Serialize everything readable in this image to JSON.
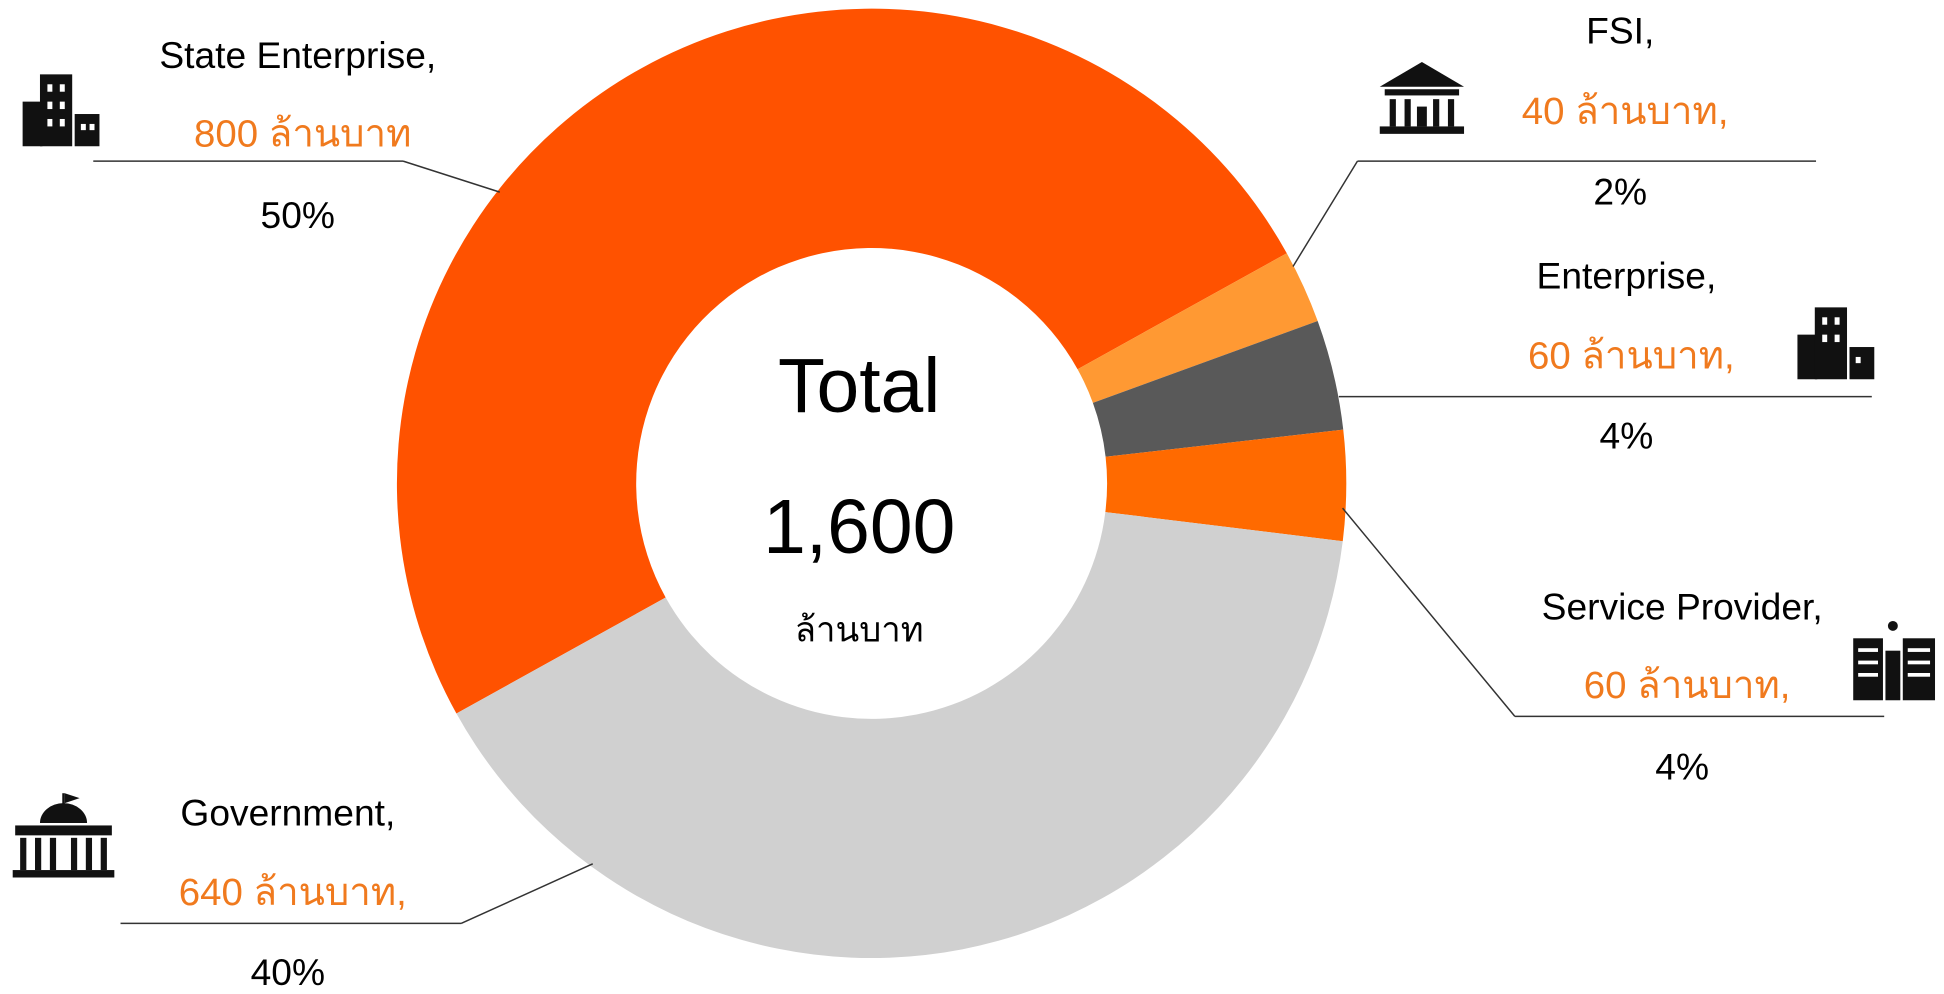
{
  "chart_data": {
    "type": "donut",
    "categories": [
      "State Enterprise,",
      "FSI,",
      "Enterprise,",
      "Service Provider,",
      "Government,"
    ],
    "values": [
      800,
      40,
      60,
      60,
      640
    ],
    "value_labels": [
      "800 ล้านบาท",
      "40 ล้านบาท,",
      "60 ล้านบาท,",
      "60 ล้านบาท,",
      "640 ล้านบาท,"
    ],
    "percents": [
      50,
      2,
      4,
      4,
      40
    ],
    "percent_labels": [
      "50%",
      "2%",
      "4%",
      "4%",
      "40%"
    ],
    "colors": [
      "#ff5200",
      "#ff9933",
      "#595959",
      "#ff6a00",
      "#d0d0d0"
    ],
    "center_title": "Total",
    "center_value": "1,600",
    "center_unit": "ล้านบาท"
  }
}
